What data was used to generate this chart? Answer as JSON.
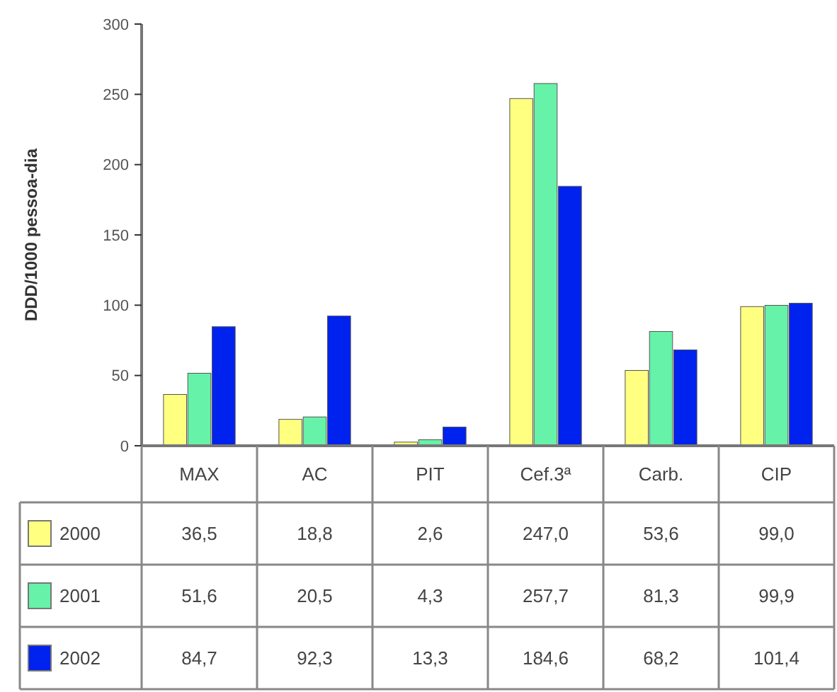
{
  "chart_data": {
    "type": "bar",
    "ylabel": "DDD/1000 pessoa-dia",
    "categories": [
      "MAX",
      "AC",
      "PIT",
      "Cef.3ª",
      "Carb.",
      "CIP"
    ],
    "series": [
      {
        "name": "2000",
        "color": "#ffff80",
        "values": [
          36.5,
          18.8,
          2.6,
          247.0,
          53.6,
          99.0
        ],
        "value_labels": [
          "36,5",
          "18,8",
          "2,6",
          "247,0",
          "53,6",
          "99,0"
        ]
      },
      {
        "name": "2001",
        "color": "#66f2a8",
        "values": [
          51.6,
          20.5,
          4.3,
          257.7,
          81.3,
          99.9
        ],
        "value_labels": [
          "51,6",
          "20,5",
          "4,3",
          "257,7",
          "81,3",
          "99,9"
        ]
      },
      {
        "name": "2002",
        "color": "#0022ee",
        "values": [
          84.7,
          92.3,
          13.3,
          184.6,
          68.2,
          101.4
        ],
        "value_labels": [
          "84,7",
          "92,3",
          "13,3",
          "184,6",
          "68,2",
          "101,4"
        ]
      }
    ],
    "ylim": [
      0,
      300
    ],
    "yticks": [
      0,
      50,
      100,
      150,
      200,
      250,
      300
    ],
    "legend": "bottom",
    "grid": false
  }
}
